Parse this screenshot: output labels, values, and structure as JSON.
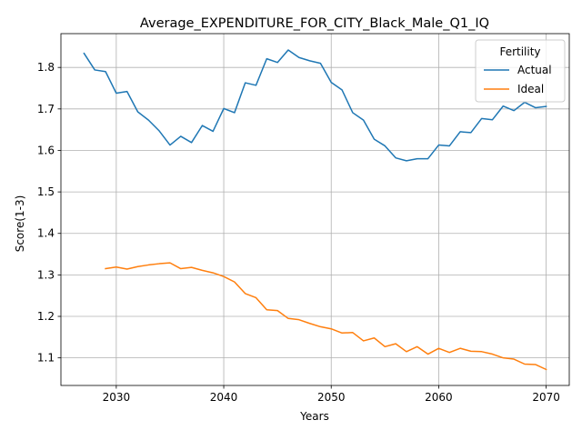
{
  "chart_data": {
    "type": "line",
    "title": "Average_EXPENDITURE_FOR_CITY_Black_Male_Q1_IQ",
    "xlabel": "Years",
    "ylabel": "Score(1-3)",
    "xlim": [
      2024.85,
      2072.15
    ],
    "ylim": [
      1.0335,
      1.8815
    ],
    "xticks": [
      2030,
      2040,
      2050,
      2060,
      2070
    ],
    "yticks": [
      1.1,
      1.2,
      1.3,
      1.4,
      1.5,
      1.6,
      1.7,
      1.8
    ],
    "xtick_labels": [
      "2030",
      "2040",
      "2050",
      "2060",
      "2070"
    ],
    "ytick_labels": [
      "1.1",
      "1.2",
      "1.3",
      "1.4",
      "1.5",
      "1.6",
      "1.7",
      "1.8"
    ],
    "grid": true,
    "legend": {
      "title": "Fertility",
      "position": "top-right"
    },
    "series": [
      {
        "name": "Actual",
        "color": "#1f77b4",
        "x": [
          2027,
          2028,
          2029,
          2030,
          2031,
          2032,
          2033,
          2034,
          2035,
          2036,
          2037,
          2038,
          2039,
          2040,
          2041,
          2042,
          2043,
          2044,
          2045,
          2046,
          2047,
          2048,
          2049,
          2050,
          2051,
          2052,
          2053,
          2054,
          2055,
          2056,
          2057,
          2058,
          2059,
          2060,
          2061,
          2062,
          2063,
          2064,
          2065,
          2066,
          2067,
          2068,
          2069,
          2070
        ],
        "y": [
          1.834,
          1.794,
          1.79,
          1.738,
          1.742,
          1.693,
          1.673,
          1.647,
          1.613,
          1.634,
          1.619,
          1.66,
          1.646,
          1.701,
          1.691,
          1.763,
          1.757,
          1.821,
          1.812,
          1.842,
          1.824,
          1.816,
          1.81,
          1.764,
          1.746,
          1.691,
          1.673,
          1.627,
          1.611,
          1.582,
          1.575,
          1.58,
          1.58,
          1.613,
          1.611,
          1.645,
          1.643,
          1.677,
          1.674,
          1.707,
          1.696,
          1.716,
          1.703,
          1.706
        ]
      },
      {
        "name": "Ideal",
        "color": "#ff7f0e",
        "x": [
          2029,
          2030,
          2031,
          2032,
          2033,
          2034,
          2035,
          2036,
          2037,
          2038,
          2039,
          2040,
          2041,
          2042,
          2043,
          2044,
          2045,
          2046,
          2047,
          2048,
          2049,
          2050,
          2051,
          2052,
          2053,
          2054,
          2055,
          2056,
          2057,
          2058,
          2059,
          2060,
          2061,
          2062,
          2063,
          2064,
          2065,
          2066,
          2067,
          2068,
          2069,
          2070
        ],
        "y": [
          1.315,
          1.319,
          1.314,
          1.32,
          1.324,
          1.327,
          1.329,
          1.315,
          1.318,
          1.311,
          1.305,
          1.296,
          1.283,
          1.255,
          1.245,
          1.216,
          1.214,
          1.195,
          1.192,
          1.183,
          1.175,
          1.17,
          1.16,
          1.161,
          1.141,
          1.148,
          1.127,
          1.134,
          1.115,
          1.127,
          1.109,
          1.123,
          1.113,
          1.123,
          1.116,
          1.115,
          1.109,
          1.1,
          1.097,
          1.085,
          1.084,
          1.072
        ]
      }
    ]
  }
}
